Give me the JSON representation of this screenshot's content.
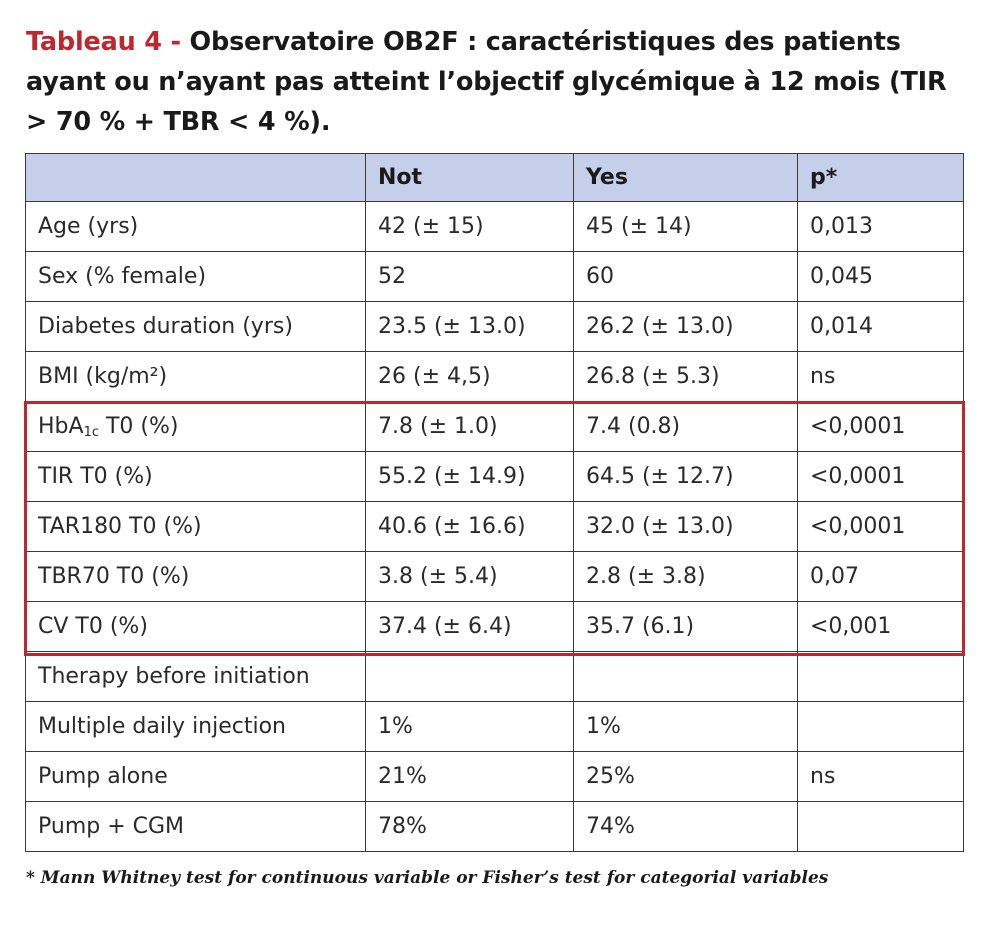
{
  "title": {
    "label": "Tableau 4 -",
    "text": "Observatoire OB2F : caractéristiques des patients ayant ou n’ayant pas atteint l’objectif glycémique à 12 mois (TIR > 70 % + TBR < 4 %)."
  },
  "table": {
    "headers": [
      "",
      "Not",
      "Yes",
      "p*"
    ],
    "rows": [
      {
        "label": "Age (yrs)",
        "not": "42 (± 15)",
        "yes": "45 (± 14)",
        "p": "0,013"
      },
      {
        "label": "Sex (% female)",
        "not": "52",
        "yes": "60",
        "p": "0,045"
      },
      {
        "label": "Diabetes duration (yrs)",
        "not": "23.5 (± 13.0)",
        "yes": "26.2 (± 13.0)",
        "p": "0,014"
      },
      {
        "label": "BMI (kg/m²)",
        "not": "26 (± 4,5)",
        "yes": "26.8 (± 5.3)",
        "p": "ns"
      },
      {
        "label_main": "HbA",
        "label_sub": "1c",
        "label_rest": " T0 (%)",
        "not": "7.8 (± 1.0)",
        "yes": "7.4 (0.8)",
        "p": "<0,0001"
      },
      {
        "label": "TIR T0 (%)",
        "not": "55.2 (± 14.9)",
        "yes": "64.5 (± 12.7)",
        "p": "<0,0001"
      },
      {
        "label": "TAR180 T0 (%)",
        "not": "40.6 (± 16.6)",
        "yes": "32.0 (± 13.0)",
        "p": "<0,0001"
      },
      {
        "label": "TBR70 T0 (%)",
        "not": "3.8 (± 5.4)",
        "yes": "2.8 (± 3.8)",
        "p": "0,07"
      },
      {
        "label": "CV T0 (%)",
        "not": "37.4 (± 6.4)",
        "yes": "35.7 (6.1)",
        "p": "<0,001"
      },
      {
        "label": "Therapy before initiation",
        "not": "",
        "yes": "",
        "p": ""
      },
      {
        "label": "Multiple daily injection",
        "not": "1%",
        "yes": "1%",
        "p": ""
      },
      {
        "label": "Pump alone",
        "not": "21%",
        "yes": "25%",
        "p": "ns"
      },
      {
        "label": "Pump + CGM",
        "not": "78%",
        "yes": "74%",
        "p": ""
      }
    ]
  },
  "footnote": "* Mann Whitney test for continuous variable or Fisher’s test for categorial variables",
  "colors": {
    "accent": "#c0262d",
    "header_bg": "#c6cfea",
    "border": "#3a3a3a"
  }
}
